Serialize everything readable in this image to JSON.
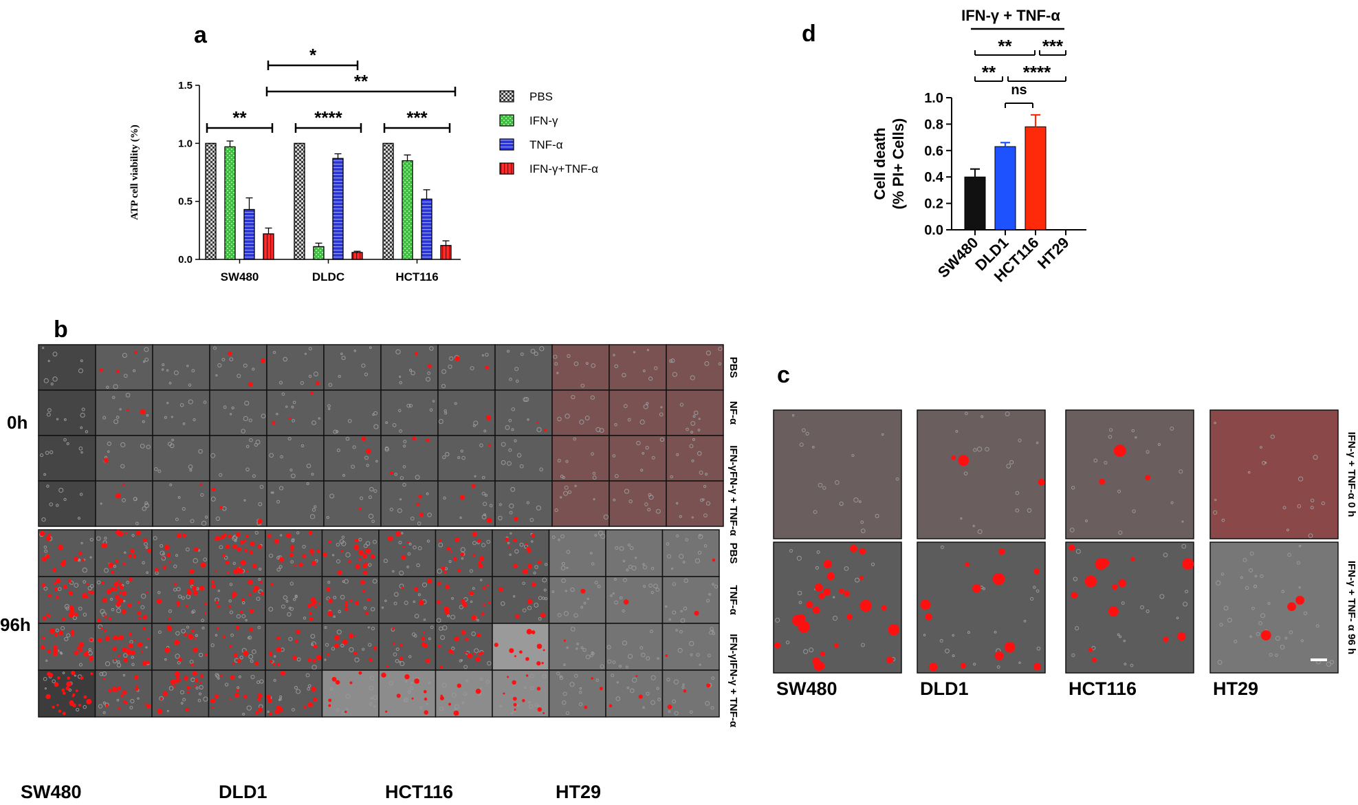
{
  "panel_letters": {
    "a": "a",
    "b": "b",
    "c": "c",
    "d": "d"
  },
  "colors": {
    "pbs": "#cfcfcf",
    "ifn": "#3fbf3f",
    "tnf": "#2a35d6",
    "combo": "#ff2a2a",
    "d_sw480": "#111111",
    "d_dld1": "#1f52ff",
    "d_hct116": "#ff2a0a",
    "micro_gray": "#676767",
    "micro_red": "#ff1010"
  },
  "chart_data": [
    {
      "type": "bar",
      "panel": "a",
      "categories": [
        "SW480",
        "DLDC",
        "HCT116"
      ],
      "series": [
        {
          "name": "PBS",
          "values": [
            1.0,
            1.0,
            1.0
          ],
          "errors": [
            0,
            0,
            0
          ]
        },
        {
          "name": "IFN-γ",
          "values": [
            0.97,
            0.11,
            0.85
          ],
          "errors": [
            0.05,
            0.03,
            0.05
          ]
        },
        {
          "name": "TNF-α",
          "values": [
            0.43,
            0.87,
            0.52
          ],
          "errors": [
            0.1,
            0.04,
            0.08
          ]
        },
        {
          "name": "IFN-γ+TNF-α",
          "values": [
            0.22,
            0.06,
            0.12
          ],
          "errors": [
            0.05,
            0.01,
            0.04
          ]
        }
      ],
      "ylabel": "ATP cell viability (%)",
      "ylim": [
        0,
        1.5
      ],
      "yticks": [
        "0.0",
        "0.5",
        "1.0",
        "1.5"
      ],
      "legend_position": "right",
      "significance": [
        {
          "label": "**",
          "from": 0,
          "to": 0
        },
        {
          "label": "****",
          "from": 1,
          "to": 1
        },
        {
          "label": "***",
          "from": 2,
          "to": 2
        },
        {
          "label": "*",
          "from": 0,
          "to": 1
        },
        {
          "label": "**",
          "from": 0,
          "to": 2
        }
      ]
    },
    {
      "type": "bar",
      "panel": "d",
      "categories": [
        "SW480",
        "DLD1",
        "HCT116",
        "HT29"
      ],
      "values": [
        0.4,
        0.63,
        0.78,
        0.0
      ],
      "errors": [
        0.06,
        0.03,
        0.09,
        0.0
      ],
      "title": "IFN-γ + TNF-α",
      "ylabel_lines": [
        "Cell death",
        "(% PI+ Cells)"
      ],
      "ylim": [
        0,
        1.0
      ],
      "yticks": [
        "0.0",
        "0.2",
        "0.4",
        "0.6",
        "0.8",
        "1.0"
      ],
      "significance": [
        {
          "label": "**",
          "from": 0,
          "to": 2
        },
        {
          "label": "***",
          "from": 2,
          "to": 3
        },
        {
          "label": "**",
          "from": 0,
          "to": 1
        },
        {
          "label": "****",
          "from": 1,
          "to": 3
        },
        {
          "label": "ns",
          "from": 1,
          "to": 2
        }
      ]
    }
  ],
  "panel_b": {
    "time_labels": [
      "0h",
      "96h"
    ],
    "row_labels_0h": [
      "PBS",
      "NF-α",
      "IFN-γ",
      "FN-γ + TNF-α"
    ],
    "row_labels_96h": [
      "PBS",
      "TNF-α",
      "IFN-γ",
      "IFN-γ + TNF-α"
    ],
    "cell_lines": [
      "SW480",
      "DLD1",
      "HCT116",
      "HT29"
    ]
  },
  "panel_c": {
    "cell_lines": [
      "SW480",
      "DLD1",
      "HCT116",
      "HT29"
    ],
    "row_labels": [
      "IFN-γ + TNF-α 0 h",
      "IFN-γ + TNF- α 96 h"
    ]
  }
}
